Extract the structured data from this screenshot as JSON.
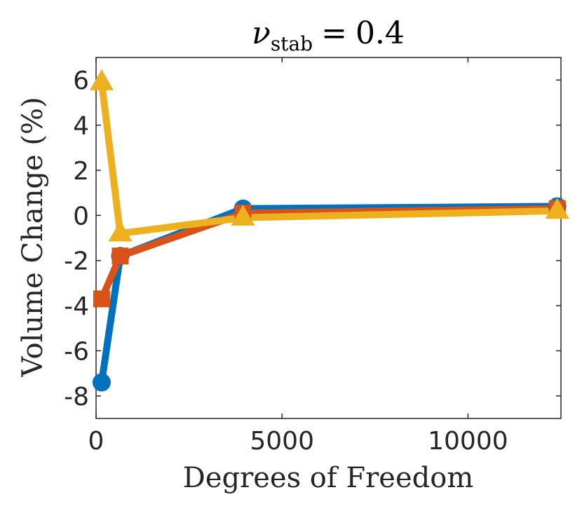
{
  "chart_data": {
    "type": "line",
    "title": {
      "symbol": "ν",
      "subscript": "stab",
      "equals": "=",
      "value": "0.4"
    },
    "xlabel": "Degrees of Freedom",
    "ylabel": "Volume Change (%)",
    "xlim": [
      0,
      12500
    ],
    "ylim": [
      -9,
      7
    ],
    "xticks": [
      0,
      5000,
      10000
    ],
    "xtick_labels": [
      "0",
      "5000",
      "10000"
    ],
    "yticks": [
      -8,
      -6,
      -4,
      -2,
      0,
      2,
      4,
      6
    ],
    "ytick_labels": [
      "-8",
      "-6",
      "-4",
      "-2",
      "0",
      "2",
      "4",
      "6"
    ],
    "grid": false,
    "series": [
      {
        "name": "series-1",
        "color": "#0072BD",
        "marker": "circle",
        "x": [
          150,
          650,
          3950,
          12400
        ],
        "y": [
          -7.4,
          -1.8,
          0.3,
          0.4
        ]
      },
      {
        "name": "series-2",
        "color": "#D95319",
        "marker": "square",
        "x": [
          150,
          650,
          3950,
          12400
        ],
        "y": [
          -3.7,
          -1.8,
          0.1,
          0.3
        ]
      },
      {
        "name": "series-3",
        "color": "#EDB120",
        "marker": "triangle",
        "x": [
          150,
          650,
          3950,
          12400
        ],
        "y": [
          5.9,
          -0.8,
          -0.1,
          0.2
        ]
      }
    ]
  }
}
